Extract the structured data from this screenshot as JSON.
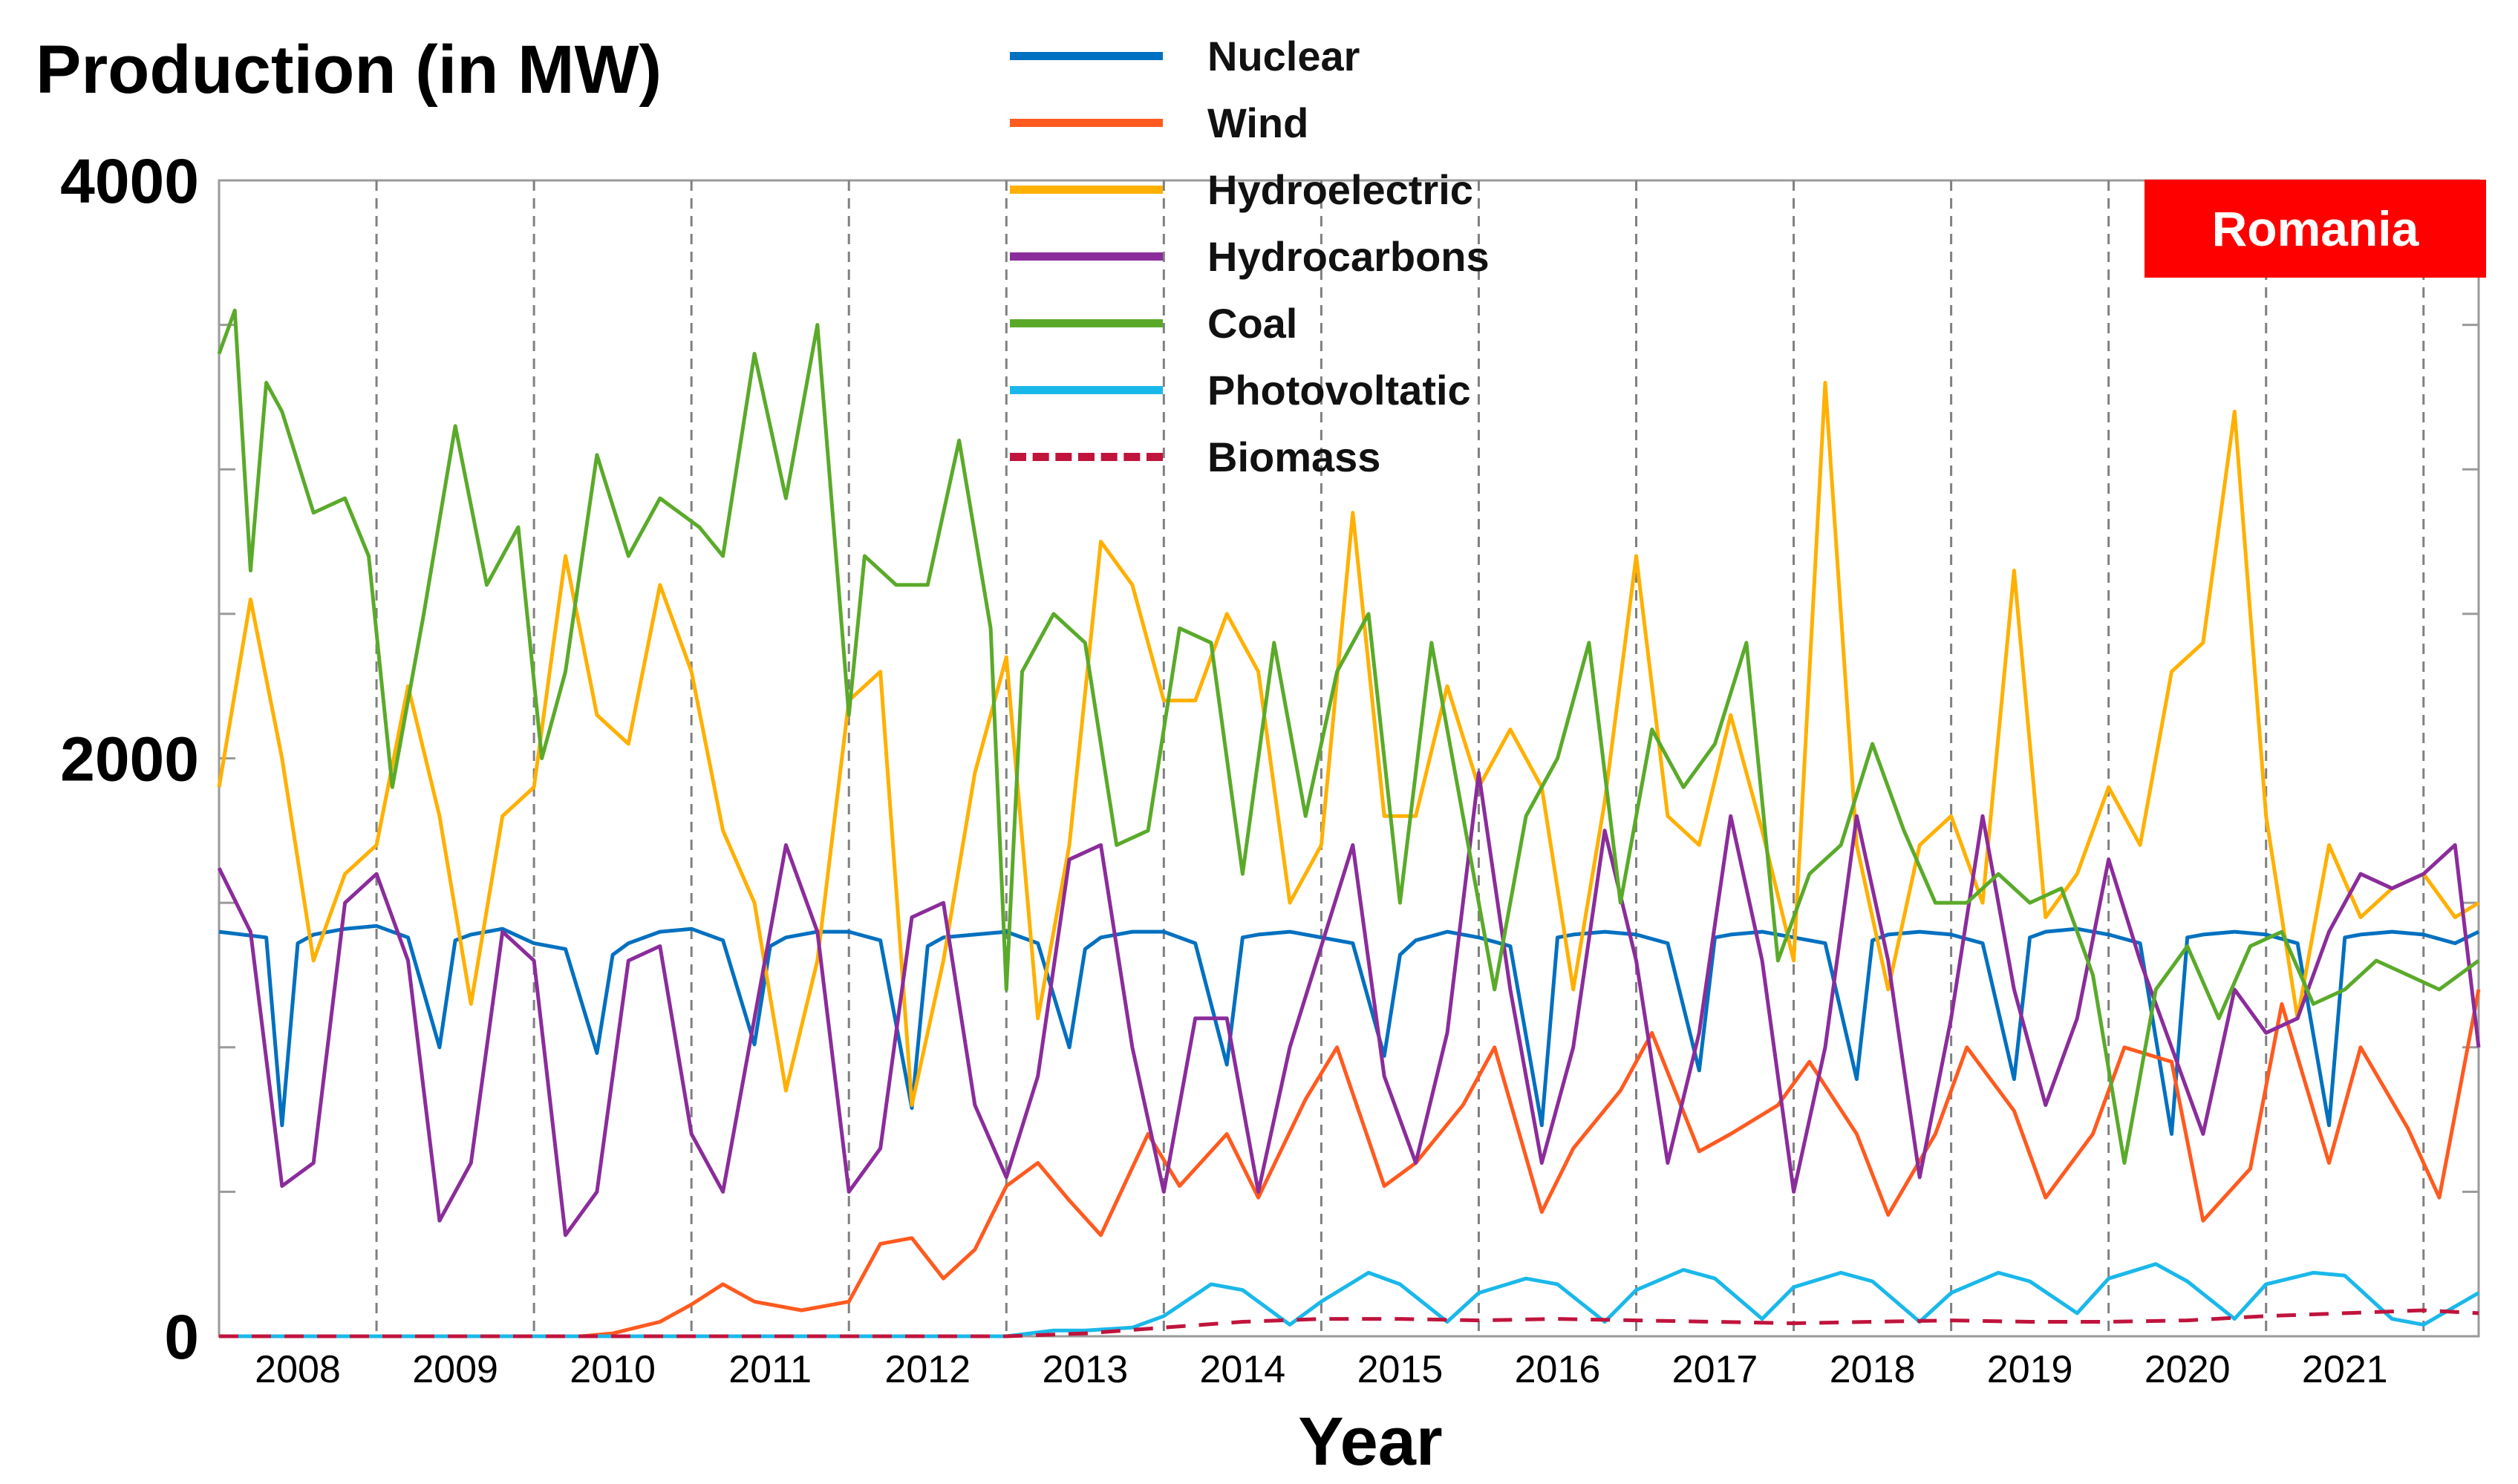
{
  "chart_data": {
    "type": "line",
    "title": "",
    "ylabel": "Production (in MW)",
    "xlabel": "Year",
    "badge": "Romania",
    "ylim": [
      0,
      4000
    ],
    "xlim": [
      2007.5,
      2021.85
    ],
    "yticks_labeled": [
      {
        "value": 0,
        "label": "0"
      },
      {
        "value": 2000,
        "label": "2000"
      },
      {
        "value": 4000,
        "label": "4000"
      }
    ],
    "yticks_minor": [
      500,
      1000,
      1500,
      2500,
      3000,
      3500
    ],
    "year_boundaries": [
      2008.5,
      2009.5,
      2010.5,
      2011.5,
      2012.5,
      2013.5,
      2014.5,
      2015.5,
      2016.5,
      2017.5,
      2018.5,
      2019.5,
      2020.5,
      2021.5
    ],
    "xtick_labels": [
      {
        "year": 2008,
        "label": "2008"
      },
      {
        "year": 2009,
        "label": "2009"
      },
      {
        "year": 2010,
        "label": "2010"
      },
      {
        "year": 2011,
        "label": "2011"
      },
      {
        "year": 2012,
        "label": "2012"
      },
      {
        "year": 2013,
        "label": "2013"
      },
      {
        "year": 2014,
        "label": "2014"
      },
      {
        "year": 2015,
        "label": "2015"
      },
      {
        "year": 2016,
        "label": "2016"
      },
      {
        "year": 2017,
        "label": "2017"
      },
      {
        "year": 2018,
        "label": "2018"
      },
      {
        "year": 2019,
        "label": "2019"
      },
      {
        "year": 2020,
        "label": "2020"
      },
      {
        "year": 2021,
        "label": "2021"
      }
    ],
    "series": [
      {
        "name": "Nuclear",
        "color": "#0070c0",
        "dash": false,
        "x": [
          2007.5,
          2007.8,
          2007.9,
          2008.0,
          2008.1,
          2008.3,
          2008.5,
          2008.7,
          2008.9,
          2009.0,
          2009.1,
          2009.3,
          2009.5,
          2009.7,
          2009.9,
          2010.0,
          2010.1,
          2010.3,
          2010.5,
          2010.7,
          2010.9,
          2011.0,
          2011.1,
          2011.3,
          2011.5,
          2011.7,
          2011.9,
          2012.0,
          2012.1,
          2012.3,
          2012.5,
          2012.7,
          2012.9,
          2013.0,
          2013.1,
          2013.3,
          2013.5,
          2013.7,
          2013.9,
          2014.0,
          2014.1,
          2014.3,
          2014.5,
          2014.7,
          2014.9,
          2015.0,
          2015.1,
          2015.3,
          2015.5,
          2015.7,
          2015.9,
          2016.0,
          2016.1,
          2016.3,
          2016.5,
          2016.7,
          2016.9,
          2017.0,
          2017.1,
          2017.3,
          2017.5,
          2017.7,
          2017.9,
          2018.0,
          2018.1,
          2018.3,
          2018.5,
          2018.7,
          2018.9,
          2019.0,
          2019.1,
          2019.3,
          2019.5,
          2019.7,
          2019.9,
          2020.0,
          2020.1,
          2020.3,
          2020.5,
          2020.7,
          2020.9,
          2021.0,
          2021.1,
          2021.3,
          2021.5,
          2021.7,
          2021.85
        ],
        "y": [
          1400,
          1380,
          730,
          1360,
          1390,
          1410,
          1420,
          1380,
          1000,
          1370,
          1390,
          1410,
          1360,
          1340,
          980,
          1320,
          1360,
          1400,
          1410,
          1370,
          1010,
          1350,
          1380,
          1400,
          1400,
          1370,
          790,
          1350,
          1380,
          1390,
          1400,
          1360,
          1000,
          1340,
          1380,
          1400,
          1400,
          1360,
          940,
          1380,
          1390,
          1400,
          1380,
          1360,
          970,
          1320,
          1370,
          1400,
          1380,
          1350,
          730,
          1380,
          1390,
          1400,
          1390,
          1360,
          920,
          1380,
          1390,
          1400,
          1380,
          1360,
          890,
          1370,
          1390,
          1400,
          1390,
          1360,
          890,
          1380,
          1400,
          1410,
          1390,
          1360,
          700,
          1380,
          1390,
          1400,
          1390,
          1360,
          730,
          1380,
          1390,
          1400,
          1390,
          1360,
          1400
        ]
      },
      {
        "name": "Wind",
        "color": "#ff5a1f",
        "dash": false,
        "x": [
          2007.5,
          2009.0,
          2009.8,
          2010.0,
          2010.3,
          2010.5,
          2010.7,
          2010.9,
          2011.2,
          2011.5,
          2011.7,
          2011.9,
          2012.1,
          2012.3,
          2012.5,
          2012.7,
          2012.9,
          2013.1,
          2013.4,
          2013.6,
          2013.9,
          2014.1,
          2014.4,
          2014.6,
          2014.9,
          2015.1,
          2015.4,
          2015.6,
          2015.9,
          2016.1,
          2016.4,
          2016.6,
          2016.9,
          2017.1,
          2017.4,
          2017.6,
          2017.9,
          2018.1,
          2018.4,
          2018.6,
          2018.9,
          2019.1,
          2019.4,
          2019.6,
          2019.9,
          2020.1,
          2020.4,
          2020.6,
          2020.9,
          2021.1,
          2021.4,
          2021.6,
          2021.85
        ],
        "y": [
          0,
          0,
          0,
          10,
          50,
          110,
          180,
          120,
          90,
          120,
          320,
          340,
          200,
          300,
          520,
          600,
          470,
          350,
          700,
          520,
          700,
          480,
          820,
          1000,
          520,
          600,
          800,
          1000,
          430,
          650,
          850,
          1050,
          640,
          700,
          800,
          950,
          700,
          420,
          700,
          1000,
          780,
          480,
          700,
          1000,
          950,
          400,
          580,
          1150,
          600,
          1000,
          720,
          480,
          1200
        ]
      },
      {
        "name": "Hydroelectric",
        "color": "#ffb000",
        "dash": false,
        "x": [
          2007.5,
          2007.7,
          2007.9,
          2008.1,
          2008.3,
          2008.5,
          2008.7,
          2008.9,
          2009.1,
          2009.3,
          2009.5,
          2009.7,
          2009.9,
          2010.1,
          2010.3,
          2010.5,
          2010.7,
          2010.9,
          2011.1,
          2011.3,
          2011.5,
          2011.7,
          2011.9,
          2012.1,
          2012.3,
          2012.5,
          2012.7,
          2012.9,
          2013.1,
          2013.3,
          2013.5,
          2013.7,
          2013.9,
          2014.1,
          2014.3,
          2014.5,
          2014.7,
          2014.9,
          2015.1,
          2015.3,
          2015.5,
          2015.7,
          2015.9,
          2016.1,
          2016.3,
          2016.5,
          2016.7,
          2016.9,
          2017.1,
          2017.3,
          2017.5,
          2017.7,
          2017.9,
          2018.1,
          2018.3,
          2018.5,
          2018.7,
          2018.9,
          2019.1,
          2019.3,
          2019.5,
          2019.7,
          2019.9,
          2020.1,
          2020.3,
          2020.5,
          2020.7,
          2020.9,
          2021.1,
          2021.3,
          2021.5,
          2021.7,
          2021.85
        ],
        "y": [
          1900,
          2550,
          2000,
          1300,
          1600,
          1700,
          2250,
          1800,
          1150,
          1800,
          1900,
          2700,
          2150,
          2050,
          2600,
          2300,
          1750,
          1500,
          850,
          1300,
          2200,
          2300,
          800,
          1300,
          1950,
          2350,
          1100,
          1700,
          2750,
          2600,
          2200,
          2200,
          2500,
          2300,
          1500,
          1700,
          2850,
          1800,
          1800,
          2250,
          1900,
          2100,
          1900,
          1200,
          1850,
          2700,
          1800,
          1700,
          2150,
          1750,
          1300,
          3300,
          1700,
          1200,
          1700,
          1800,
          1500,
          2650,
          1450,
          1600,
          1900,
          1700,
          2300,
          2400,
          3200,
          1800,
          1100,
          1700,
          1450,
          1550,
          1600,
          1450,
          1500
        ]
      },
      {
        "name": "Hydrocarbons",
        "color": "#8b2c9b",
        "dash": false,
        "x": [
          2007.5,
          2007.7,
          2007.9,
          2008.1,
          2008.3,
          2008.5,
          2008.7,
          2008.9,
          2009.1,
          2009.3,
          2009.5,
          2009.7,
          2009.9,
          2010.1,
          2010.3,
          2010.5,
          2010.7,
          2010.9,
          2011.1,
          2011.3,
          2011.5,
          2011.7,
          2011.9,
          2012.1,
          2012.3,
          2012.5,
          2012.7,
          2012.9,
          2013.1,
          2013.3,
          2013.5,
          2013.7,
          2013.9,
          2014.1,
          2014.3,
          2014.5,
          2014.7,
          2014.9,
          2015.1,
          2015.3,
          2015.5,
          2015.7,
          2015.9,
          2016.1,
          2016.3,
          2016.5,
          2016.7,
          2016.9,
          2017.1,
          2017.3,
          2017.5,
          2017.7,
          2017.9,
          2018.1,
          2018.3,
          2018.5,
          2018.7,
          2018.9,
          2019.1,
          2019.3,
          2019.5,
          2019.7,
          2019.9,
          2020.1,
          2020.3,
          2020.5,
          2020.7,
          2020.9,
          2021.1,
          2021.3,
          2021.5,
          2021.7,
          2021.85
        ],
        "y": [
          1620,
          1400,
          520,
          600,
          1500,
          1600,
          1300,
          400,
          600,
          1400,
          1300,
          350,
          500,
          1300,
          1350,
          700,
          500,
          1100,
          1700,
          1400,
          500,
          650,
          1450,
          1500,
          800,
          550,
          900,
          1650,
          1700,
          1000,
          500,
          1100,
          1100,
          500,
          1000,
          1350,
          1700,
          900,
          600,
          1050,
          1950,
          1200,
          600,
          1000,
          1750,
          1300,
          600,
          1050,
          1800,
          1300,
          500,
          1000,
          1800,
          1300,
          550,
          1100,
          1800,
          1200,
          800,
          1100,
          1650,
          1300,
          1000,
          700,
          1200,
          1050,
          1100,
          1400,
          1600,
          1550,
          1600,
          1700,
          1000
        ]
      },
      {
        "name": "Coal",
        "color": "#5aaa2a",
        "dash": false,
        "x": [
          2007.5,
          2007.6,
          2007.7,
          2007.8,
          2007.9,
          2008.1,
          2008.3,
          2008.45,
          2008.6,
          2008.8,
          2009.0,
          2009.2,
          2009.4,
          2009.55,
          2009.7,
          2009.9,
          2010.1,
          2010.3,
          2010.55,
          2010.7,
          2010.9,
          2011.1,
          2011.3,
          2011.5,
          2011.6,
          2011.8,
          2012.0,
          2012.2,
          2012.4,
          2012.5,
          2012.6,
          2012.8,
          2013.0,
          2013.2,
          2013.4,
          2013.6,
          2013.8,
          2014.0,
          2014.2,
          2014.4,
          2014.6,
          2014.8,
          2015.0,
          2015.2,
          2015.4,
          2015.6,
          2015.8,
          2016.0,
          2016.2,
          2016.4,
          2016.6,
          2016.8,
          2017.0,
          2017.2,
          2017.4,
          2017.6,
          2017.8,
          2018.0,
          2018.2,
          2018.4,
          2018.6,
          2018.8,
          2019.0,
          2019.2,
          2019.4,
          2019.6,
          2019.8,
          2020.0,
          2020.2,
          2020.4,
          2020.6,
          2020.8,
          2021.0,
          2021.2,
          2021.4,
          2021.6,
          2021.85
        ],
        "y": [
          3400,
          3550,
          2650,
          3300,
          3200,
          2850,
          2900,
          2700,
          1900,
          2500,
          3150,
          2600,
          2800,
          2000,
          2300,
          3050,
          2700,
          2900,
          2800,
          2700,
          3400,
          2900,
          3500,
          2150,
          2700,
          2600,
          2600,
          3100,
          2450,
          1200,
          2300,
          2500,
          2400,
          1700,
          1750,
          2450,
          2400,
          1600,
          2400,
          1800,
          2300,
          2500,
          1500,
          2400,
          1800,
          1200,
          1800,
          2000,
          2400,
          1500,
          2100,
          1900,
          2050,
          2400,
          1300,
          1600,
          1700,
          2050,
          1750,
          1500,
          1500,
          1600,
          1500,
          1550,
          1250,
          600,
          1200,
          1350,
          1100,
          1350,
          1400,
          1150,
          1200,
          1300,
          1250,
          1200,
          1300
        ]
      },
      {
        "name": "Photovoltatic",
        "color": "#1ab8ea",
        "dash": false,
        "x": [
          2007.5,
          2012.3,
          2012.5,
          2012.8,
          2013.0,
          2013.3,
          2013.5,
          2013.8,
          2014.0,
          2014.3,
          2014.5,
          2014.8,
          2015.0,
          2015.3,
          2015.5,
          2015.8,
          2016.0,
          2016.3,
          2016.5,
          2016.8,
          2017.0,
          2017.3,
          2017.5,
          2017.8,
          2018.0,
          2018.3,
          2018.5,
          2018.8,
          2019.0,
          2019.3,
          2019.5,
          2019.8,
          2020.0,
          2020.3,
          2020.5,
          2020.8,
          2021.0,
          2021.3,
          2021.5,
          2021.85
        ],
        "y": [
          0,
          0,
          0,
          20,
          20,
          30,
          70,
          180,
          160,
          40,
          120,
          220,
          180,
          50,
          150,
          200,
          180,
          50,
          160,
          230,
          200,
          60,
          170,
          220,
          190,
          50,
          150,
          220,
          190,
          80,
          200,
          250,
          190,
          60,
          180,
          220,
          210,
          60,
          40,
          150
        ]
      },
      {
        "name": "Biomass",
        "color": "#c0143c",
        "dash": true,
        "x": [
          2007.5,
          2012.5,
          2013.0,
          2013.5,
          2014.0,
          2014.5,
          2015.0,
          2015.5,
          2016.0,
          2016.5,
          2017.0,
          2017.5,
          2018.0,
          2018.5,
          2019.0,
          2019.5,
          2020.0,
          2020.5,
          2021.0,
          2021.5,
          2021.85
        ],
        "y": [
          0,
          0,
          10,
          30,
          50,
          60,
          60,
          55,
          60,
          55,
          50,
          45,
          50,
          55,
          50,
          50,
          55,
          70,
          80,
          90,
          80
        ]
      }
    ]
  }
}
